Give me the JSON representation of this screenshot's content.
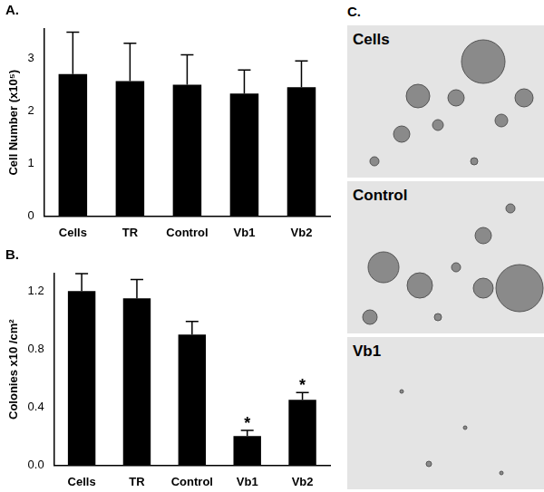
{
  "chart_data": [
    {
      "type": "bar",
      "title": "A.",
      "ylabel": "Cell Number (x10⁵)",
      "categories": [
        "Cells",
        "TR",
        "Control",
        "Vb1",
        "Vb2"
      ],
      "values": [
        2.7,
        2.57,
        2.5,
        2.33,
        2.45
      ],
      "errors": [
        0.8,
        0.72,
        0.57,
        0.45,
        0.5
      ],
      "color": "#000000",
      "ylim": [
        0,
        3.56
      ],
      "yticks": [
        0,
        1,
        2,
        3
      ],
      "grid": false
    },
    {
      "type": "bar",
      "title": "B.",
      "ylabel": "Colonies x10 /cm²",
      "categories": [
        "Cells",
        "TR",
        "Control",
        "Vb1",
        "Vb2"
      ],
      "values": [
        1.2,
        1.15,
        0.9,
        0.2,
        0.45
      ],
      "errors": [
        0.12,
        0.13,
        0.09,
        0.04,
        0.05
      ],
      "annotations": [
        {
          "category": "Vb1",
          "text": "*"
        },
        {
          "category": "Vb2",
          "text": "*"
        }
      ],
      "color": "#000000",
      "ylim": [
        0,
        1.32
      ],
      "yticks": [
        {
          "value": 0,
          "label": "0.0"
        },
        0.4,
        0.8,
        1.2
      ],
      "grid": false
    }
  ],
  "panel_c": {
    "label": "C.",
    "images": [
      "Cells",
      "Control",
      "Vb1"
    ]
  }
}
